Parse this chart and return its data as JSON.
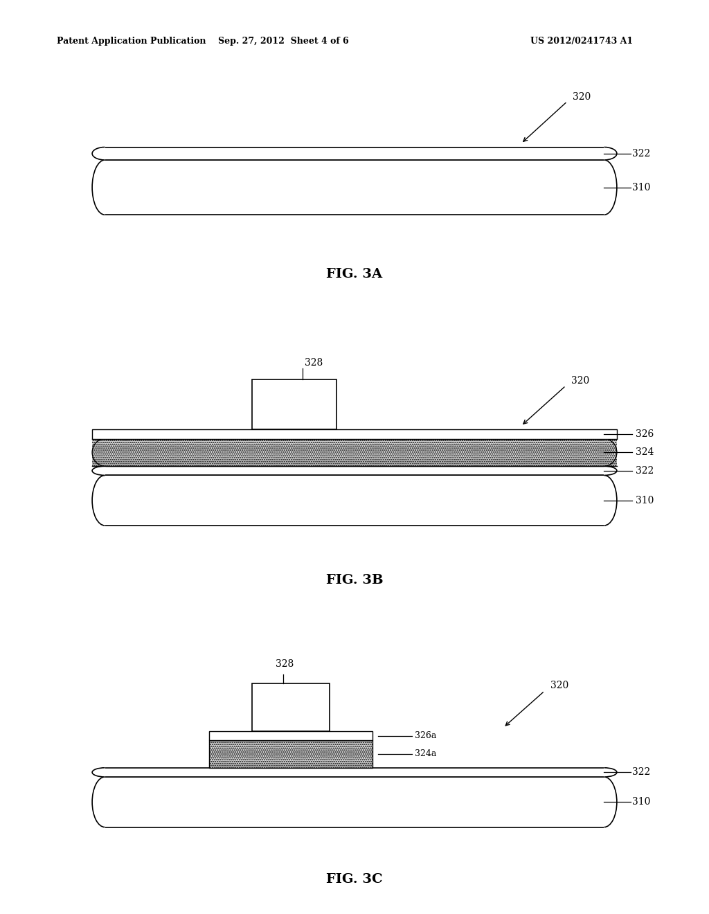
{
  "header_left": "Patent Application Publication",
  "header_mid": "Sep. 27, 2012  Sheet 4 of 6",
  "header_right": "US 2012/0241743 A1",
  "background_color": "#ffffff",
  "line_color": "#000000",
  "fig3a_title": "FIG. 3A",
  "fig3b_title": "FIG. 3B",
  "fig3c_title": "FIG. 3C"
}
